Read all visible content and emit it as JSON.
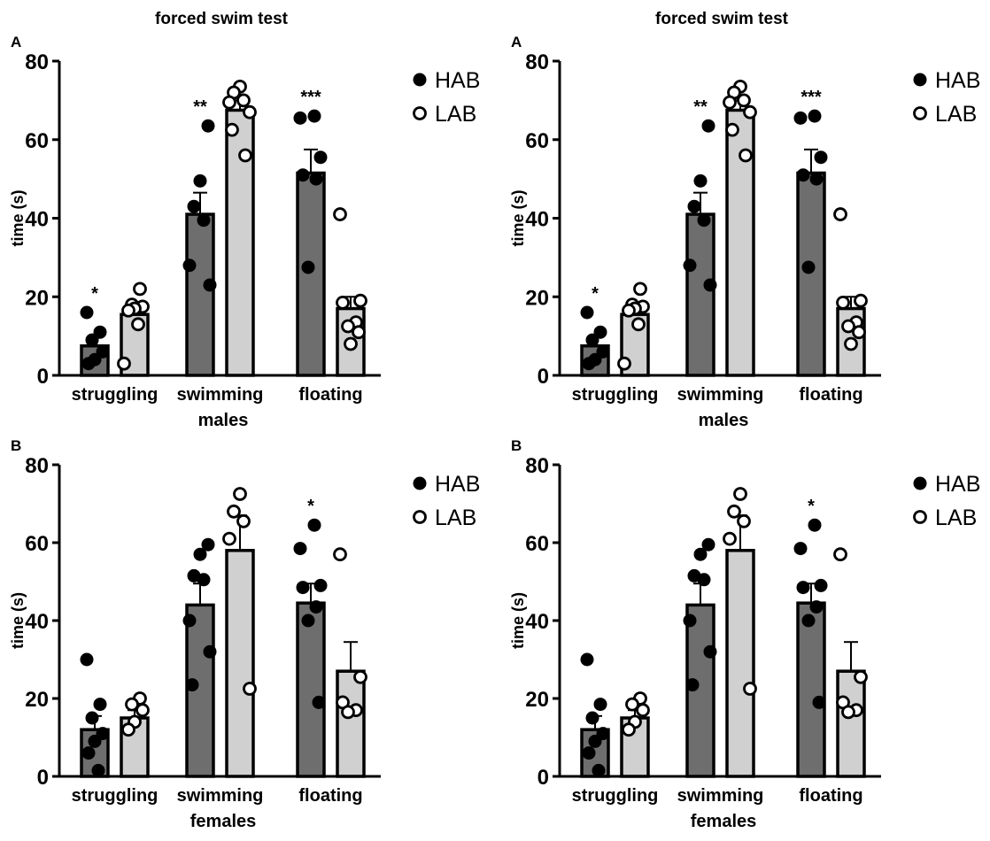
{
  "figure_title": "forced swim test",
  "panels": [
    {
      "letter": "A",
      "show_title": true,
      "xlabel": "males"
    },
    {
      "letter": "B",
      "show_title": false,
      "xlabel": "females"
    }
  ],
  "legend": [
    {
      "label": "HAB",
      "marker": "filled-circle"
    },
    {
      "label": "LAB",
      "marker": "open-circle"
    }
  ],
  "colors": {
    "hab_bar": "#6e6e6e",
    "lab_bar": "#d0d0d0",
    "ink": "#000000",
    "background": "#ffffff"
  },
  "chart_data": [
    {
      "type": "bar",
      "title": "forced swim test",
      "panel": "A",
      "xlabel": "males",
      "ylabel": "time (s)",
      "ylim": [
        0,
        80
      ],
      "yticks": [
        0,
        20,
        40,
        60,
        80
      ],
      "categories": [
        "struggling",
        "swimming",
        "floating"
      ],
      "series": [
        {
          "name": "HAB",
          "values": [
            7.5,
            41,
            51.5
          ],
          "sem": [
            2.5,
            5.5,
            6
          ],
          "points": [
            [
              16,
              11,
              9,
              6,
              4,
              3
            ],
            [
              63.5,
              49.5,
              43,
              39.5,
              28,
              23
            ],
            [
              66,
              65.5,
              55.5,
              51,
              50,
              27.5
            ]
          ]
        },
        {
          "name": "LAB",
          "values": [
            15.5,
            67.5,
            17
          ],
          "sem": [
            2,
            2.5,
            3
          ],
          "points": [
            [
              22,
              18,
              17.5,
              17,
              16.5,
              13,
              3
            ],
            [
              73.5,
              72,
              70,
              69.5,
              67,
              62.5,
              56
            ],
            [
              41,
              19,
              18.5,
              13.5,
              12.5,
              11,
              8
            ]
          ]
        }
      ],
      "significance": [
        "*",
        "**",
        "***"
      ],
      "legend_position": "right"
    },
    {
      "type": "bar",
      "panel": "B",
      "xlabel": "females",
      "ylabel": "time (s)",
      "ylim": [
        0,
        80
      ],
      "yticks": [
        0,
        20,
        40,
        60,
        80
      ],
      "categories": [
        "struggling",
        "swimming",
        "floating"
      ],
      "series": [
        {
          "name": "HAB",
          "values": [
            12,
            44,
            44.5
          ],
          "sem": [
            3.5,
            5.5,
            5
          ],
          "points": [
            [
              30,
              18.5,
              15,
              11,
              9,
              6,
              1.5
            ],
            [
              59.5,
              57,
              51.5,
              50.5,
              40,
              32,
              23.5
            ],
            [
              64.5,
              58.5,
              49,
              48.5,
              43.5,
              40,
              19
            ]
          ]
        },
        {
          "name": "LAB",
          "values": [
            15,
            58,
            27
          ],
          "sem": [
            2,
            9,
            7.5
          ],
          "points": [
            [
              20,
              18.5,
              17,
              14,
              12
            ],
            [
              72.5,
              68,
              65.5,
              61,
              22.5
            ],
            [
              57,
              25.5,
              19,
              17,
              16.5
            ]
          ]
        }
      ],
      "significance": [
        "",
        "",
        "*"
      ],
      "legend_position": "right"
    }
  ]
}
